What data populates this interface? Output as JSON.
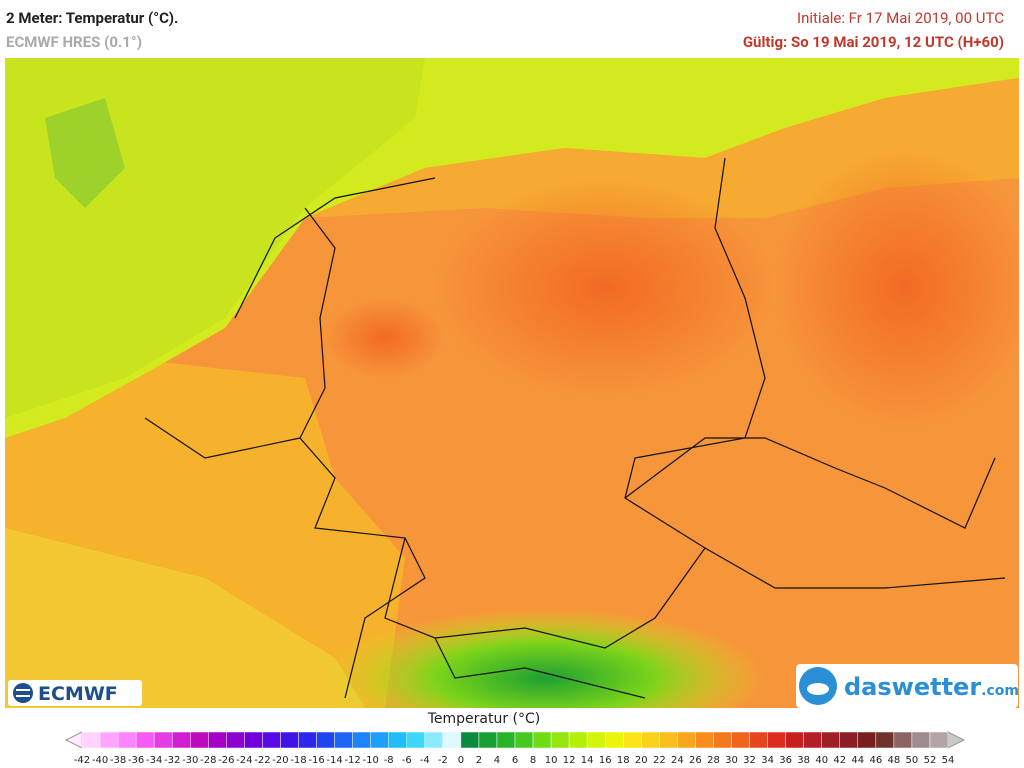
{
  "header": {
    "title": "2 Meter: Temperatur (°C).",
    "model": "ECMWF HRES (0.1°)",
    "init": "Initiale: Fr 17 Mai 2019, 00 UTC",
    "valid": "Gültig: So 19 Mai 2019, 12 UTC (H+60)"
  },
  "logos": {
    "left": "ECMWF",
    "right_name": "daswetter",
    "right_suffix": ".com"
  },
  "colorbar": {
    "label": "Temperatur (°C)",
    "ticks": [
      -42,
      -40,
      -38,
      -36,
      -34,
      -32,
      -30,
      -28,
      -26,
      -24,
      -22,
      -20,
      -18,
      -16,
      -14,
      -12,
      -10,
      -8,
      -6,
      -4,
      -2,
      0,
      2,
      4,
      6,
      8,
      10,
      12,
      14,
      16,
      18,
      20,
      22,
      24,
      26,
      28,
      30,
      32,
      34,
      36,
      38,
      40,
      42,
      44,
      46,
      48,
      50,
      52,
      54
    ],
    "colors": [
      "#ffd2ff",
      "#ffa5ff",
      "#ff82ff",
      "#f55af5",
      "#e63ce6",
      "#d21ed2",
      "#be0abe",
      "#a500c8",
      "#8c00d2",
      "#7300dc",
      "#5a0ae6",
      "#4114e6",
      "#2d28eb",
      "#1e46f0",
      "#1e64f5",
      "#1e82fa",
      "#1ea0fa",
      "#1ebefa",
      "#3cd7fa",
      "#8cebfa",
      "#dcfaff",
      "#0a8a3c",
      "#18a032",
      "#28b428",
      "#46c81e",
      "#6edc14",
      "#96e60f",
      "#b4f00a",
      "#d2f50a",
      "#ebf50a",
      "#fae614",
      "#fad21e",
      "#fabe1e",
      "#faa51e",
      "#fa8c1e",
      "#f5781e",
      "#f0641e",
      "#e6461e",
      "#dc2d1e",
      "#c81e1e",
      "#b41e28",
      "#a01e28",
      "#8c1e28",
      "#781e1e",
      "#6e3228",
      "#8c6464",
      "#a08c8c",
      "#b4a5a5"
    ]
  }
}
